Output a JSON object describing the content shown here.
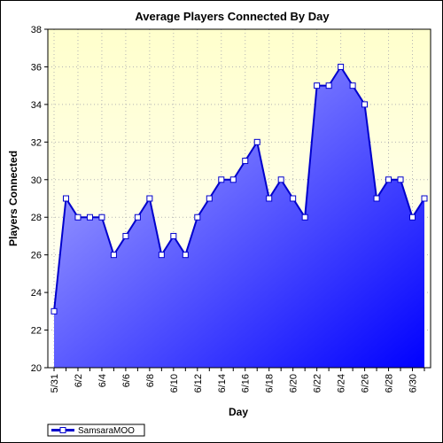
{
  "chart_data": {
    "type": "area",
    "title": "Average Players Connected By Day",
    "xlabel": "Day",
    "ylabel": "Players Connected",
    "ylim": [
      20,
      38
    ],
    "yticks": [
      20,
      22,
      24,
      26,
      28,
      30,
      32,
      34,
      36,
      38
    ],
    "x_tick_labels": [
      "5/31",
      "6/2",
      "6/4",
      "6/6",
      "6/8",
      "6/10",
      "6/12",
      "6/14",
      "6/16",
      "6/18",
      "6/20",
      "6/22",
      "6/24",
      "6/26",
      "6/28",
      "6/30"
    ],
    "categories": [
      "5/31",
      "6/1",
      "6/2",
      "6/3",
      "6/4",
      "6/5",
      "6/6",
      "6/7",
      "6/8",
      "6/9",
      "6/10",
      "6/11",
      "6/12",
      "6/13",
      "6/14",
      "6/15",
      "6/16",
      "6/17",
      "6/18",
      "6/19",
      "6/20",
      "6/21",
      "6/22",
      "6/23",
      "6/24",
      "6/25",
      "6/26",
      "6/27",
      "6/28",
      "6/29",
      "6/30",
      "7/1"
    ],
    "series": [
      {
        "name": "SamsaraMOO",
        "values": [
          23,
          29,
          28,
          28,
          28,
          26,
          27,
          28,
          29,
          26,
          27,
          26,
          28,
          29,
          30,
          30,
          31,
          32,
          29,
          30,
          29,
          28,
          35,
          35,
          36,
          35,
          34,
          29,
          30,
          30,
          28,
          29
        ]
      }
    ],
    "grid": true,
    "legend": "bottom-left",
    "colors": {
      "plot_background_top": "#ffffcc",
      "plot_background_bottom": "#ffffff",
      "area_top": "#b8b8ff",
      "area_bottom": "#0000ff",
      "line": "#0000cc",
      "marker_fill": "#ffffff"
    }
  }
}
